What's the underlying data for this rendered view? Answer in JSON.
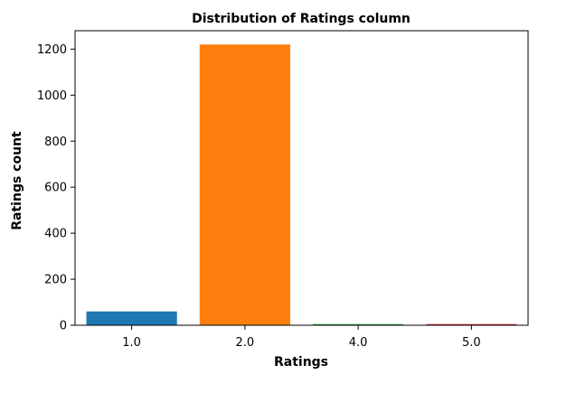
{
  "chart_data": {
    "type": "bar",
    "title": "Distribution of Ratings column",
    "xlabel": "Ratings",
    "ylabel": "Ratings count",
    "categories": [
      "1.0",
      "2.0",
      "4.0",
      "5.0"
    ],
    "values": [
      60,
      1220,
      5,
      5
    ],
    "colors": [
      "#1f77b4",
      "#ff7f0e",
      "#2ca02c",
      "#d62728"
    ],
    "ylim": [
      0,
      1280
    ],
    "yticks": [
      0,
      200,
      400,
      600,
      800,
      1000,
      1200
    ],
    "grid": false,
    "legend": false
  }
}
